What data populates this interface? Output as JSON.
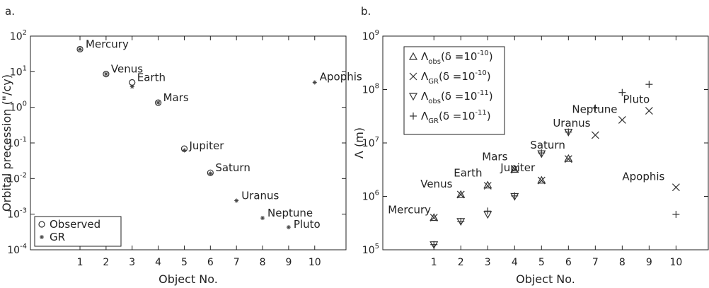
{
  "chart_data": [
    {
      "panel_label": "a.",
      "type": "scatter",
      "xlabel": "Object No.",
      "ylabel": "Orbital precession (\"/cy)",
      "yscale": "log",
      "ylim": [
        0.0001,
        100
      ],
      "xlim": [
        -0.9,
        11.2
      ],
      "xticks": [
        "1",
        "2",
        "3",
        "4",
        "5",
        "6",
        "7",
        "8",
        "9",
        "10"
      ],
      "yticks": [
        {
          "base": "10",
          "exp": "2"
        },
        {
          "base": "10",
          "exp": "1"
        },
        {
          "base": "10",
          "exp": "0"
        },
        {
          "base": "10",
          "exp": "-1"
        },
        {
          "base": "10",
          "exp": "-2"
        },
        {
          "base": "10",
          "exp": "-3"
        },
        {
          "base": "10",
          "exp": "-4"
        }
      ],
      "legend": {
        "position": "bottom-left",
        "entries": [
          "Observed",
          "GR"
        ]
      },
      "series": [
        {
          "name": "Observed",
          "marker": "circle",
          "points": [
            [
              1,
              43
            ],
            [
              2,
              8.6
            ],
            [
              3,
              5.0
            ],
            [
              4,
              1.35
            ],
            [
              5,
              0.069
            ],
            [
              6,
              0.0145
            ]
          ]
        },
        {
          "name": "GR",
          "marker": "star",
          "points": [
            [
              1,
              43
            ],
            [
              2,
              8.6
            ],
            [
              3,
              3.8
            ],
            [
              4,
              1.35
            ],
            [
              5,
              0.062
            ],
            [
              6,
              0.0138
            ],
            [
              7,
              0.0024
            ],
            [
              8,
              0.00078
            ],
            [
              9,
              0.00043
            ],
            [
              10,
              5.0
            ]
          ]
        }
      ],
      "annotations": [
        {
          "text": "Mercury",
          "x": 1,
          "y": 43
        },
        {
          "text": "Venus",
          "x": 2,
          "y": 8.6
        },
        {
          "text": "Earth",
          "x": 3,
          "y": 5.0
        },
        {
          "text": "Mars",
          "x": 4,
          "y": 1.35
        },
        {
          "text": "Jupiter",
          "x": 5,
          "y": 0.069
        },
        {
          "text": "Saturn",
          "x": 6,
          "y": 0.0145
        },
        {
          "text": "Uranus",
          "x": 7,
          "y": 0.0024
        },
        {
          "text": "Neptune",
          "x": 8,
          "y": 0.00078
        },
        {
          "text": "Pluto",
          "x": 9,
          "y": 0.00043
        },
        {
          "text": "Apophis",
          "x": 10,
          "y": 5.0
        }
      ]
    },
    {
      "panel_label": "b.",
      "type": "scatter",
      "xlabel": "Object No.",
      "ylabel": "Λ (m)",
      "yscale": "log",
      "ylim": [
        100000,
        1000000000
      ],
      "xlim": [
        -0.9,
        11.2
      ],
      "xticks": [
        "1",
        "2",
        "3",
        "4",
        "5",
        "6",
        "7",
        "8",
        "9",
        "10"
      ],
      "yticks": [
        {
          "base": "10",
          "exp": "9"
        },
        {
          "base": "10",
          "exp": "8"
        },
        {
          "base": "10",
          "exp": "7"
        },
        {
          "base": "10",
          "exp": "6"
        },
        {
          "base": "10",
          "exp": "5"
        }
      ],
      "legend": {
        "position": "top-left",
        "entries": [
          {
            "symbol": "Λ",
            "sub": "obs",
            "text": "(δ =10",
            "exp": "-10",
            "close": ")"
          },
          {
            "symbol": "Λ",
            "sub": "GR",
            "text": "(δ =10",
            "exp": "-10",
            "close": ")"
          },
          {
            "symbol": "Λ",
            "sub": "obs",
            "text": "(δ =10",
            "exp": "-11",
            "close": ")"
          },
          {
            "symbol": "Λ",
            "sub": "GR",
            "text": "(δ =10",
            "exp": "-11",
            "close": ")"
          }
        ]
      },
      "series": [
        {
          "name": "Λobs (δ=10^-10)",
          "marker": "triangle-up",
          "points": [
            [
              1,
              400000
            ],
            [
              2,
              1080000
            ],
            [
              3,
              1620000
            ],
            [
              4,
              3200000
            ],
            [
              5,
              2000000
            ],
            [
              6,
              5100000
            ]
          ]
        },
        {
          "name": "ΛGR (δ=10^-10)",
          "marker": "x",
          "points": [
            [
              1,
              400000
            ],
            [
              2,
              1080000
            ],
            [
              3,
              1580000
            ],
            [
              4,
              3250000
            ],
            [
              5,
              1980000
            ],
            [
              6,
              5000000
            ],
            [
              7,
              14000000
            ],
            [
              8,
              27000000
            ],
            [
              9,
              40000000
            ],
            [
              10,
              1480000
            ]
          ]
        },
        {
          "name": "Λobs (δ=10^-11)",
          "marker": "triangle-down",
          "points": [
            [
              1,
              125000
            ],
            [
              2,
              340000
            ],
            [
              3,
              460000
            ],
            [
              4,
              1000000
            ],
            [
              5,
              6300000
            ],
            [
              6,
              16000000
            ]
          ]
        },
        {
          "name": "ΛGR (δ=10^-11)",
          "marker": "plus",
          "points": [
            [
              1,
              125000
            ],
            [
              2,
              340000
            ],
            [
              3,
              530000
            ],
            [
              4,
              1020000
            ],
            [
              5,
              6500000
            ],
            [
              6,
              16000000
            ],
            [
              7,
              45000000
            ],
            [
              8,
              88000000
            ],
            [
              9,
              125000000
            ],
            [
              10,
              460000
            ]
          ]
        }
      ],
      "annotations": [
        {
          "text": "Mercury",
          "x": 1,
          "y": 400000
        },
        {
          "text": "Venus",
          "x": 2,
          "y": 1080000
        },
        {
          "text": "Earth",
          "x": 3,
          "y": 1620000
        },
        {
          "text": "Mars",
          "x": 4,
          "y": 3200000
        },
        {
          "text": "Jupiter",
          "x": 5,
          "y": 2000000
        },
        {
          "text": "Saturn",
          "x": 6,
          "y": 5100000
        },
        {
          "text": "Uranus",
          "x": 7,
          "y": 14000000
        },
        {
          "text": "Neptune",
          "x": 8,
          "y": 27000000
        },
        {
          "text": "Pluto",
          "x": 9,
          "y": 40000000
        },
        {
          "text": "Apophis",
          "x": 10,
          "y": 1480000
        }
      ]
    }
  ]
}
